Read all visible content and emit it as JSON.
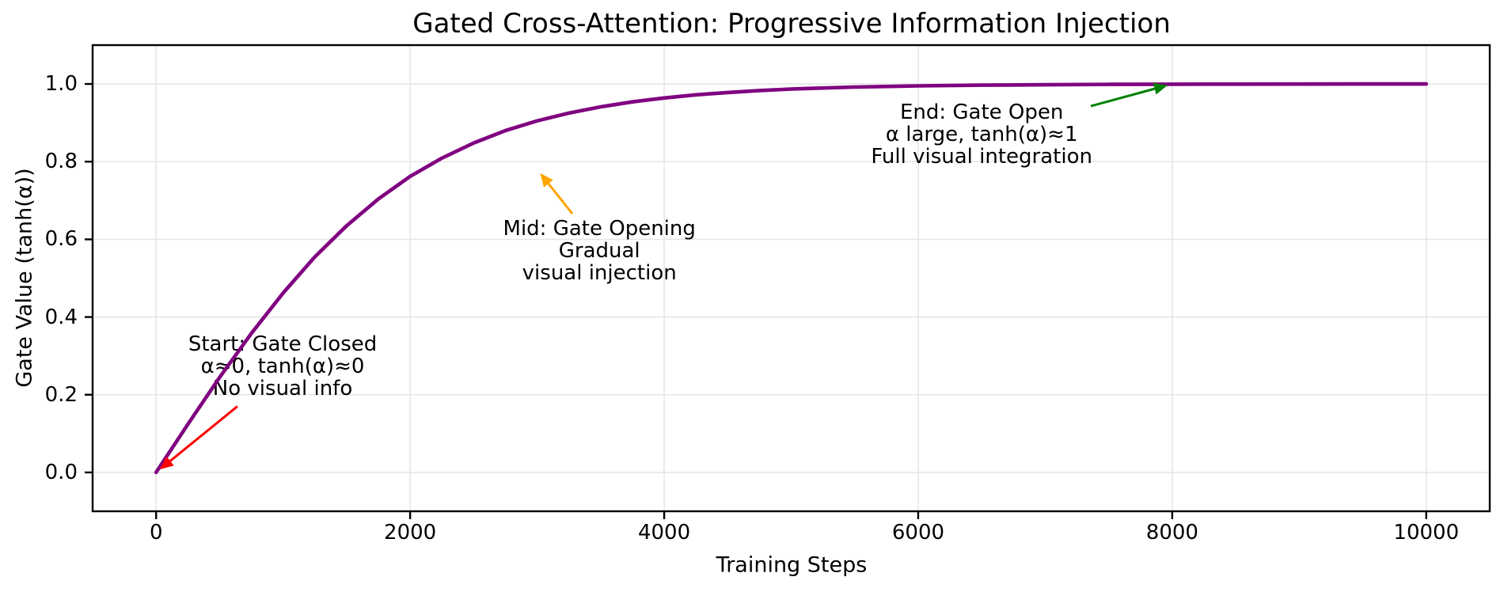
{
  "chart_data": {
    "type": "line",
    "title": "Gated Cross-Attention: Progressive Information Injection",
    "xlabel": "Training Steps",
    "ylabel": "Gate Value (tanh(α))",
    "xlim": [
      -500,
      10500
    ],
    "ylim": [
      -0.1,
      1.1
    ],
    "x_ticks": [
      0,
      2000,
      4000,
      6000,
      8000,
      10000
    ],
    "x_tick_labels": [
      "0",
      "2000",
      "4000",
      "6000",
      "8000",
      "10000"
    ],
    "y_ticks": [
      0.0,
      0.2,
      0.4,
      0.6,
      0.8,
      1.0
    ],
    "y_tick_labels": [
      "0.0",
      "0.2",
      "0.4",
      "0.6",
      "0.8",
      "1.0"
    ],
    "grid": true,
    "legend": false,
    "colors": {
      "background": "#ffffff",
      "grid": "#e6e6e6",
      "spine": "#000000",
      "text": "#000000"
    },
    "series": [
      {
        "name": "gate-value-tanh-alpha",
        "color": "#800080",
        "line_width": 4.6,
        "x": [
          0,
          250,
          500,
          750,
          1000,
          1250,
          1500,
          1750,
          2000,
          2250,
          2500,
          2750,
          3000,
          3250,
          3500,
          3750,
          4000,
          4250,
          4500,
          4750,
          5000,
          5500,
          6000,
          6500,
          7000,
          7500,
          8000,
          8500,
          9000,
          9500,
          10000
        ],
        "y": [
          0,
          0.124,
          0.245,
          0.358,
          0.462,
          0.555,
          0.635,
          0.704,
          0.762,
          0.809,
          0.848,
          0.88,
          0.905,
          0.925,
          0.941,
          0.954,
          0.964,
          0.972,
          0.978,
          0.983,
          0.987,
          0.992,
          0.995,
          0.997,
          0.998,
          0.999,
          0.9993,
          0.9996,
          0.9998,
          0.9999,
          1.0
        ]
      }
    ],
    "annotations": [
      {
        "id": "start",
        "lines": [
          "Start: Gate Closed",
          "α≈0, tanh(α)≈0",
          "No visual info"
        ],
        "arrow_color": "#ff0000",
        "xy": [
          0,
          0.0
        ],
        "arrow_tail": [
          640,
          0.17
        ],
        "text_center": [
          996,
          0.273
        ]
      },
      {
        "id": "mid",
        "lines": [
          "Mid: Gate Opening",
          "Gradual",
          "visual injection"
        ],
        "arrow_color": "#ffa500",
        "xy": [
          3000,
          0.78
        ],
        "arrow_tail": [
          3277,
          0.666
        ],
        "text_center": [
          3490,
          0.57
        ]
      },
      {
        "id": "end",
        "lines": [
          "End: Gate Open",
          "α large, tanh(α)≈1",
          "Full visual integration"
        ],
        "arrow_color": "#008000",
        "xy": [
          8000,
          1.0
        ],
        "arrow_tail": [
          7359,
          0.943
        ],
        "text_center": [
          6500,
          0.87
        ]
      }
    ]
  }
}
